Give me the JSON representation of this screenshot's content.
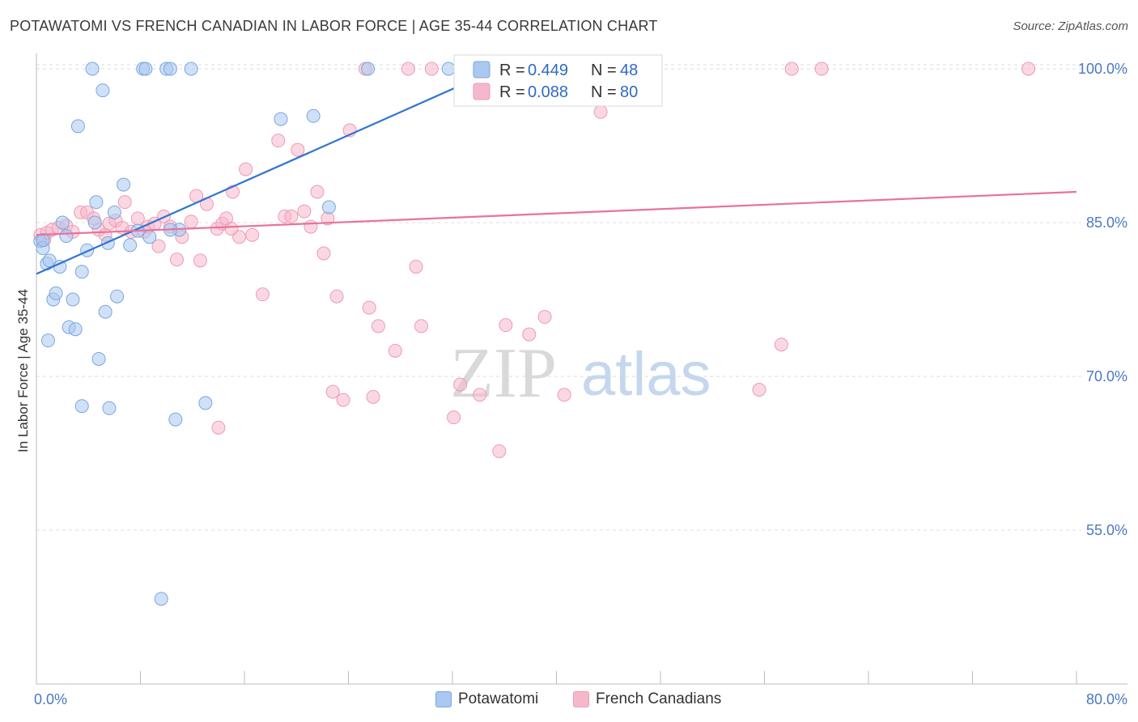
{
  "title": "POTAWATOMI VS FRENCH CANADIAN IN LABOR FORCE | AGE 35-44 CORRELATION CHART",
  "source": "Source: ZipAtlas.com",
  "watermark": {
    "zip": "ZIP",
    "atlas": "atlas"
  },
  "colors": {
    "blue_fill": "#aac8f0",
    "blue_stroke": "#7aa6e0",
    "blue_line": "#2f74d0",
    "pink_fill": "#f5b8cb",
    "pink_stroke": "#ee9ab5",
    "pink_line": "#e8729a",
    "tick_text": "#4a78c2",
    "grid": "#dddddd"
  },
  "legend": {
    "r_label": "R =",
    "n_label": "N =",
    "rows": [
      {
        "series": "Potawatomi",
        "r": "0.449",
        "n": "48"
      },
      {
        "series": "French Canadians",
        "r": "0.088",
        "n": "80"
      }
    ]
  },
  "bottom_legend": [
    "Potawatomi",
    "French Canadians"
  ],
  "chart_data": {
    "type": "scatter",
    "title": "POTAWATOMI VS FRENCH CANADIAN IN LABOR FORCE | AGE 35-44 CORRELATION CHART",
    "xlabel": "",
    "ylabel": "In Labor Force | Age 35-44",
    "xlim": [
      0,
      80
    ],
    "ylim": [
      40,
      101.5
    ],
    "x_tick_labels": [
      "0.0%",
      "80.0%"
    ],
    "y_ticks": [
      55,
      70,
      85,
      100
    ],
    "y_tick_labels": [
      "55.0%",
      "70.0%",
      "85.0%",
      "100.0%"
    ],
    "grid": "horizontal dashed",
    "legend_position": "top-center",
    "series": [
      {
        "name": "Potawatomi",
        "color": "#aac8f0",
        "trend": {
          "x": [
            0,
            35.5
          ],
          "y": [
            80.0,
            100.0
          ]
        },
        "points": [
          [
            0.3,
            83.2
          ],
          [
            0.5,
            82.5
          ],
          [
            0.5,
            83.3
          ],
          [
            0.8,
            81.0
          ],
          [
            1.0,
            81.3
          ],
          [
            1.3,
            77.5
          ],
          [
            1.5,
            78.1
          ],
          [
            1.8,
            80.7
          ],
          [
            2.0,
            85.0
          ],
          [
            2.3,
            83.7
          ],
          [
            2.5,
            74.8
          ],
          [
            2.8,
            77.5
          ],
          [
            3.0,
            74.6
          ],
          [
            3.2,
            94.4
          ],
          [
            3.5,
            80.2
          ],
          [
            3.9,
            82.3
          ],
          [
            4.3,
            100.0
          ],
          [
            4.5,
            85.0
          ],
          [
            4.6,
            87.0
          ],
          [
            4.8,
            71.7
          ],
          [
            5.1,
            97.9
          ],
          [
            5.3,
            76.3
          ],
          [
            5.5,
            83.0
          ],
          [
            6.0,
            86.0
          ],
          [
            6.2,
            77.8
          ],
          [
            6.7,
            88.7
          ],
          [
            7.2,
            82.8
          ],
          [
            7.8,
            84.2
          ],
          [
            8.2,
            100.0
          ],
          [
            8.4,
            100.0
          ],
          [
            8.7,
            83.6
          ],
          [
            9.6,
            48.3
          ],
          [
            10.0,
            100.0
          ],
          [
            10.3,
            100.0
          ],
          [
            10.7,
            65.8
          ],
          [
            11.0,
            84.3
          ],
          [
            11.9,
            100.0
          ],
          [
            13.0,
            67.4
          ],
          [
            18.8,
            95.1
          ],
          [
            21.3,
            95.4
          ],
          [
            22.5,
            86.5
          ],
          [
            25.5,
            100.0
          ],
          [
            31.7,
            100.0
          ],
          [
            34.5,
            99.8
          ],
          [
            3.5,
            67.1
          ],
          [
            5.6,
            66.9
          ],
          [
            0.9,
            73.5
          ],
          [
            10.3,
            84.3
          ]
        ]
      },
      {
        "name": "French Canadians",
        "color": "#f5b8cb",
        "trend": {
          "x": [
            0,
            80
          ],
          "y": [
            83.8,
            88.0
          ]
        },
        "points": [
          [
            0.3,
            83.8
          ],
          [
            0.6,
            83.3
          ],
          [
            0.8,
            84.0
          ],
          [
            1.2,
            84.3
          ],
          [
            1.7,
            84.5
          ],
          [
            2.3,
            84.7
          ],
          [
            2.8,
            84.1
          ],
          [
            3.4,
            86.0
          ],
          [
            3.9,
            86.0
          ],
          [
            4.4,
            85.4
          ],
          [
            4.8,
            84.3
          ],
          [
            5.3,
            83.8
          ],
          [
            5.6,
            84.9
          ],
          [
            6.1,
            85.2
          ],
          [
            6.6,
            84.5
          ],
          [
            6.8,
            87.0
          ],
          [
            7.3,
            84.1
          ],
          [
            7.8,
            85.4
          ],
          [
            8.3,
            84.1
          ],
          [
            8.6,
            84.6
          ],
          [
            9.1,
            84.9
          ],
          [
            9.4,
            82.7
          ],
          [
            9.8,
            85.6
          ],
          [
            10.3,
            84.6
          ],
          [
            10.8,
            81.4
          ],
          [
            11.2,
            83.6
          ],
          [
            11.9,
            85.1
          ],
          [
            12.3,
            87.6
          ],
          [
            12.6,
            81.3
          ],
          [
            13.1,
            86.8
          ],
          [
            13.9,
            84.4
          ],
          [
            14.3,
            84.9
          ],
          [
            14.6,
            85.4
          ],
          [
            15.1,
            88.0
          ],
          [
            15.6,
            83.6
          ],
          [
            16.1,
            90.2
          ],
          [
            16.6,
            83.8
          ],
          [
            17.4,
            78.0
          ],
          [
            18.6,
            93.0
          ],
          [
            19.1,
            85.6
          ],
          [
            19.6,
            85.6
          ],
          [
            20.1,
            92.1
          ],
          [
            20.6,
            86.1
          ],
          [
            21.1,
            84.6
          ],
          [
            21.6,
            88.0
          ],
          [
            22.1,
            82.0
          ],
          [
            22.4,
            85.4
          ],
          [
            22.8,
            68.5
          ],
          [
            23.1,
            77.8
          ],
          [
            23.6,
            67.7
          ],
          [
            24.1,
            94.0
          ],
          [
            25.3,
            100.0
          ],
          [
            25.6,
            76.7
          ],
          [
            25.9,
            68.0
          ],
          [
            26.3,
            74.9
          ],
          [
            27.6,
            72.5
          ],
          [
            28.6,
            100.0
          ],
          [
            29.2,
            80.7
          ],
          [
            29.6,
            74.9
          ],
          [
            30.4,
            100.0
          ],
          [
            32.1,
            66.0
          ],
          [
            32.6,
            69.2
          ],
          [
            33.3,
            100.0
          ],
          [
            34.1,
            68.2
          ],
          [
            35.6,
            62.7
          ],
          [
            36.1,
            75.0
          ],
          [
            36.6,
            100.0
          ],
          [
            37.9,
            74.1
          ],
          [
            39.1,
            75.8
          ],
          [
            40.6,
            68.2
          ],
          [
            42.1,
            100.0
          ],
          [
            43.4,
            95.8
          ],
          [
            44.6,
            100.0
          ],
          [
            55.6,
            68.7
          ],
          [
            57.3,
            73.1
          ],
          [
            58.1,
            100.0
          ],
          [
            60.4,
            100.0
          ],
          [
            76.3,
            100.0
          ],
          [
            14.0,
            65.0
          ],
          [
            15.0,
            84.4
          ]
        ]
      }
    ]
  }
}
